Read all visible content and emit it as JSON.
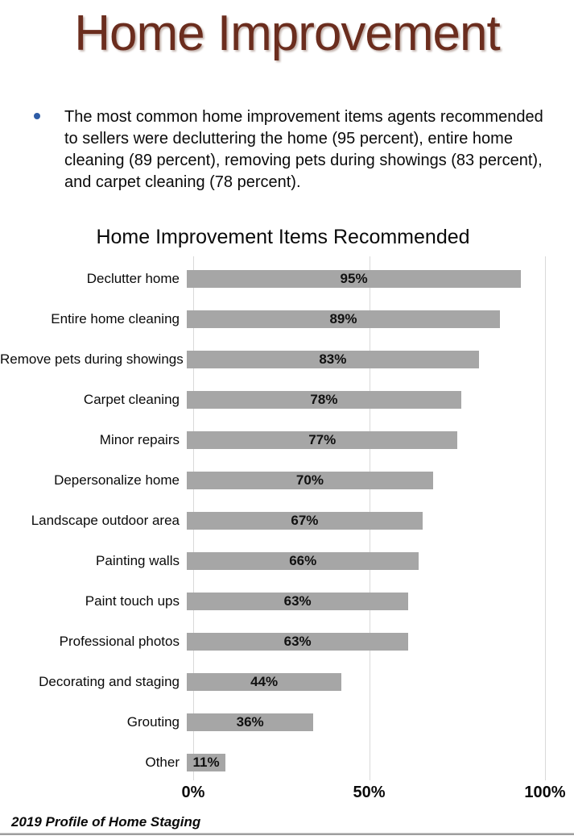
{
  "page": {
    "title": "Home Improvement",
    "title_color": "#6b2d1e",
    "bullet": {
      "marker": "dot",
      "marker_color": "#2e5ca6",
      "text": "The most common home improvement items agents recommended to sellers were decluttering the home (95 percent), entire home cleaning (89 percent), removing pets during showings (83 percent), and carpet cleaning (78 percent)."
    },
    "footer": "2019 Profile of Home Staging"
  },
  "chart_data": {
    "type": "bar",
    "orientation": "horizontal",
    "title": "Home Improvement Items Recommended",
    "categories": [
      "Declutter home",
      "Entire home cleaning",
      "Remove pets during showings",
      "Carpet cleaning",
      "Minor repairs",
      "Depersonalize home",
      "Landscape outdoor area",
      "Painting walls",
      "Paint touch ups",
      "Professional photos",
      "Decorating and staging",
      "Grouting",
      "Other"
    ],
    "values": [
      95,
      89,
      83,
      78,
      77,
      70,
      67,
      66,
      63,
      63,
      44,
      36,
      11
    ],
    "value_labels": [
      "95%",
      "89%",
      "83%",
      "78%",
      "77%",
      "70%",
      "67%",
      "66%",
      "63%",
      "63%",
      "44%",
      "36%",
      "11%"
    ],
    "xlabel": "",
    "ylabel": "",
    "xlim": [
      0,
      100
    ],
    "x_ticks": [
      "0%",
      "50%",
      "100%"
    ],
    "x_tick_values": [
      0,
      50,
      100
    ],
    "grid": true,
    "gridline_color": "#d9d9d9",
    "bar_color": "#a6a6a6",
    "value_label_position": "center-inside",
    "legend": "none"
  }
}
